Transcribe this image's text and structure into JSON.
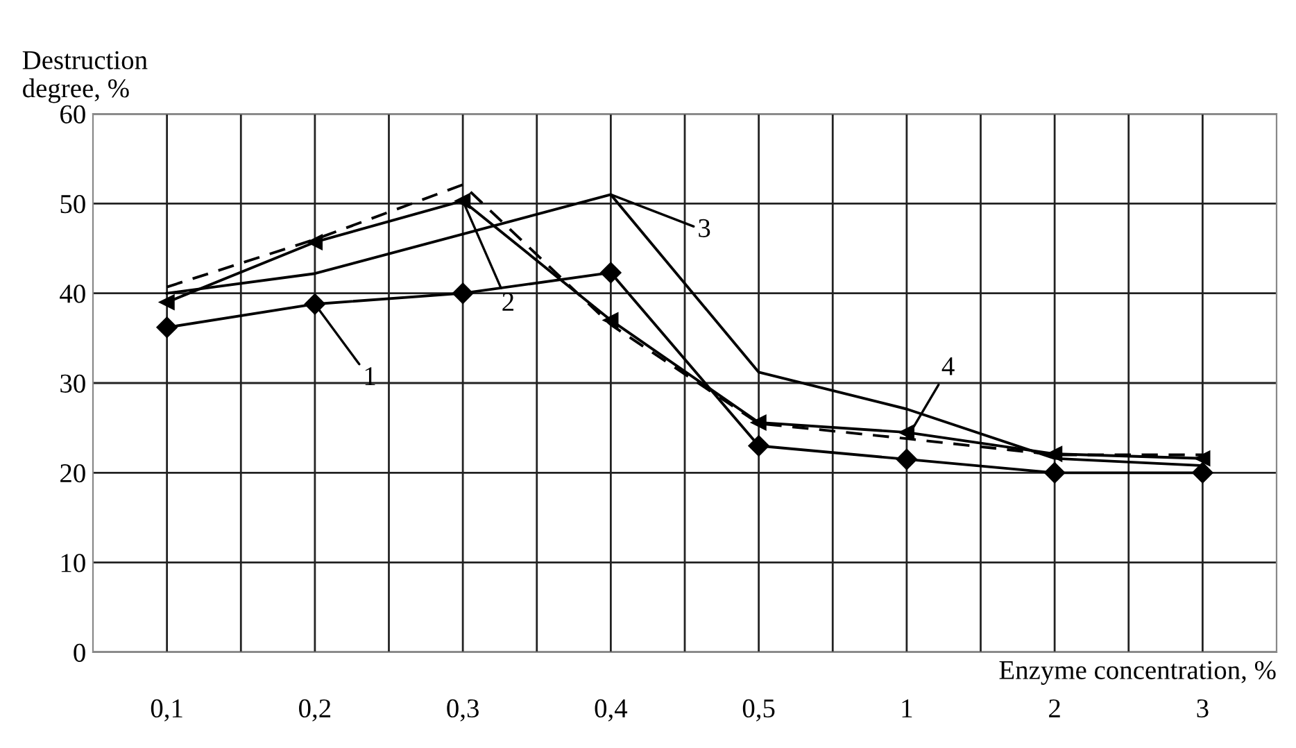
{
  "chart_data": {
    "type": "line",
    "xlabel": "Enzyme concentration, %",
    "ylabel": "Destruction\ndegree, %",
    "categories": [
      "0,1",
      "0,2",
      "0,3",
      "0,4",
      "0,5",
      "1",
      "2",
      "3"
    ],
    "ylim": [
      0,
      60
    ],
    "yticks": [
      0,
      10,
      20,
      30,
      40,
      50,
      60
    ],
    "grid": true,
    "legend": false,
    "series": [
      {
        "color": "#000000",
        "marker": "diamond",
        "line_style": "solid",
        "values": [
          36.2,
          38.8,
          40.0,
          42.3,
          23.0,
          21.5,
          20.0,
          20.0
        ]
      },
      {
        "color": "#000000",
        "marker": "triangle",
        "line_style": "solid",
        "values": [
          39.0,
          45.7,
          50.3,
          37.0,
          25.6,
          24.5,
          22.1,
          21.6
        ]
      },
      {
        "color": "#000000",
        "marker": "none",
        "line_style": "solid",
        "values": [
          40.0,
          42.2,
          46.6,
          51.0,
          31.2,
          27.1,
          21.6,
          20.8
        ]
      },
      {
        "color": "#000000",
        "marker": "none",
        "line_style": "dashed",
        "values": [
          40.7,
          46.0,
          52.1,
          36.5,
          25.5,
          23.8,
          22.0,
          22.0
        ]
      }
    ],
    "annotations": [
      {
        "text": "1",
        "x": "0,2",
        "y": 38.8
      },
      {
        "text": "2",
        "x": "0,3",
        "y": 50.3
      },
      {
        "text": "3",
        "x": "0,4",
        "y": 51.0
      },
      {
        "text": "4",
        "x": "1",
        "y": 23.8
      }
    ]
  }
}
